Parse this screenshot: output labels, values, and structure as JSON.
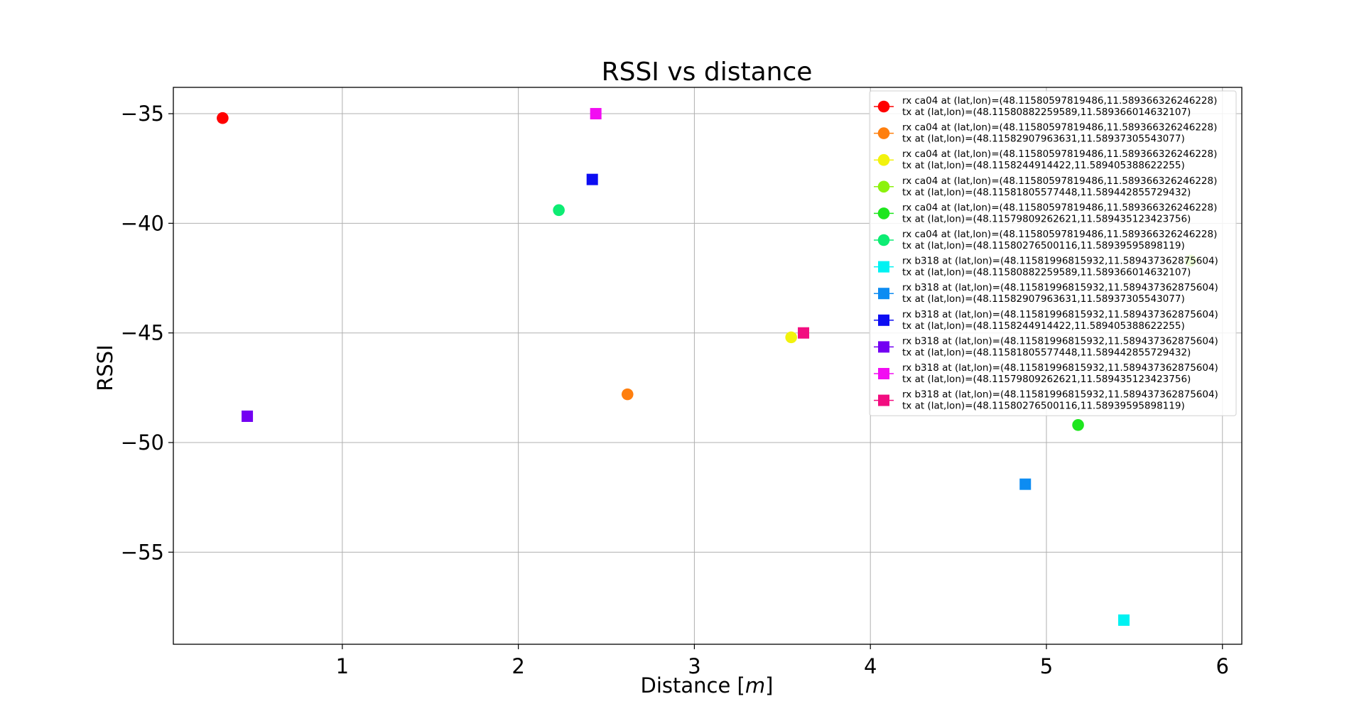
{
  "chart_data": {
    "type": "scatter",
    "title": "RSSI vs distance",
    "xlabel_prefix": "Distance [",
    "xlabel_var": "m",
    "xlabel_suffix": "]",
    "ylabel": "RSSI",
    "xlim": [
      0.04,
      6.11
    ],
    "ylim": [
      -59.2,
      -33.8
    ],
    "xticks": [
      1,
      2,
      3,
      4,
      5,
      6
    ],
    "yticks": [
      -35,
      -40,
      -45,
      -50,
      -55
    ],
    "ytick_labels": [
      "−35",
      "−40",
      "−45",
      "−50",
      "−55"
    ],
    "grid": true,
    "legend_position": "top-right",
    "series": [
      {
        "line1": "rx ca04 at (lat,lon)=(48.11580597819486,11.589366326246228)",
        "line2": " tx at (lat,lon)=(48.11580882259589,11.589366014632107)",
        "marker": "circle",
        "color": "#ff0000",
        "x": 0.32,
        "y": -35.2
      },
      {
        "line1": "rx ca04 at (lat,lon)=(48.11580597819486,11.589366326246228)",
        "line2": " tx at (lat,lon)=(48.11582907963631,11.58937305543077)",
        "marker": "circle",
        "color": "#ff7f0e",
        "x": 2.62,
        "y": -47.8
      },
      {
        "line1": "rx ca04 at (lat,lon)=(48.11580597819486,11.589366326246228)",
        "line2": " tx at (lat,lon)=(48.1158244914422,11.589405388622255)",
        "marker": "circle",
        "color": "#f2f20d",
        "x": 3.55,
        "y": -45.2
      },
      {
        "line1": "rx ca04 at (lat,lon)=(48.11580597819486,11.589366326246228)",
        "line2": " tx at (lat,lon)=(48.11581805577448,11.589442855729432)",
        "marker": "circle",
        "color": "#8cf20d",
        "x": 5.82,
        "y": -41.7
      },
      {
        "line1": "rx ca04 at (lat,lon)=(48.11580597819486,11.589366326246228)",
        "line2": " tx at (lat,lon)=(48.11579809262621,11.589435123423756)",
        "marker": "circle",
        "color": "#1ee61e",
        "x": 5.18,
        "y": -49.2
      },
      {
        "line1": "rx ca04 at (lat,lon)=(48.11580597819486,11.589366326246228)",
        "line2": " tx at (lat,lon)=(48.11580276500116,11.58939595898119)",
        "marker": "circle",
        "color": "#0dec73",
        "x": 2.23,
        "y": -39.4
      },
      {
        "line1": "rx b318 at (lat,lon)=(48.11581996815932,11.589437362875604)",
        "line2": " tx at (lat,lon)=(48.11580882259589,11.589366014632107)",
        "marker": "square",
        "color": "#00f2f2",
        "x": 5.44,
        "y": -58.1
      },
      {
        "line1": "rx b318 at (lat,lon)=(48.11581996815932,11.589437362875604)",
        "line2": " tx at (lat,lon)=(48.11582907963631,11.58937305543077)",
        "marker": "square",
        "color": "#0d8cf2",
        "x": 4.88,
        "y": -51.9
      },
      {
        "line1": "rx b318 at (lat,lon)=(48.11581996815932,11.589437362875604)",
        "line2": " tx at (lat,lon)=(48.1158244914422,11.589405388622255)",
        "marker": "square",
        "color": "#0d0df2",
        "x": 2.42,
        "y": -38.0
      },
      {
        "line1": "rx b318 at (lat,lon)=(48.11581996815932,11.589437362875604)",
        "line2": " tx at (lat,lon)=(48.11581805577448,11.589442855729432)",
        "marker": "square",
        "color": "#7300f2",
        "x": 0.46,
        "y": -48.8
      },
      {
        "line1": "rx b318 at (lat,lon)=(48.11581996815932,11.589437362875604)",
        "line2": " tx at (lat,lon)=(48.11579809262621,11.589435123423756)",
        "marker": "square",
        "color": "#f20df2",
        "x": 2.44,
        "y": -35.0
      },
      {
        "line1": "rx b318 at (lat,lon)=(48.11581996815932,11.589437362875604)",
        "line2": " tx at (lat,lon)=(48.11580276500116,11.58939595898119)",
        "marker": "square",
        "color": "#f20d80",
        "x": 3.62,
        "y": -45.0
      }
    ]
  }
}
